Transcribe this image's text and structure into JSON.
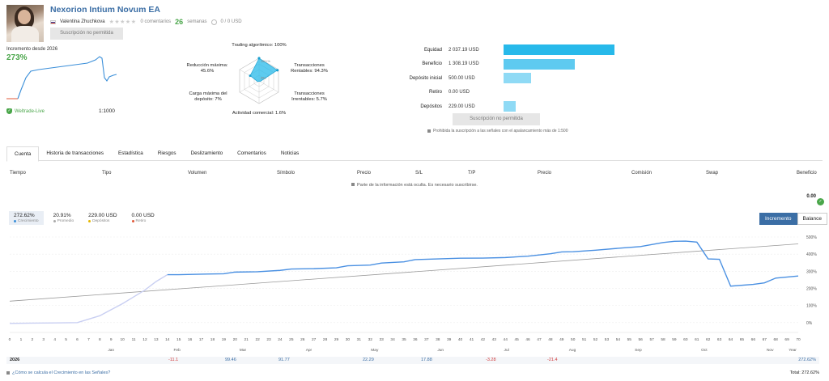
{
  "header": {
    "title": "Nexorion Intium Novum EA",
    "author": "Valentina Zhuchkova",
    "comments": "0 comentarios",
    "weeks_num": "26",
    "weeks_label": "semanas",
    "subscribers": "0 / 0 USD",
    "subscribe_btn": "Suscripción no permitida"
  },
  "summary": {
    "growth_label": "Incremento desde 2026",
    "growth_value": "273%",
    "broker": "Weltrade-Live",
    "leverage": "1:1000"
  },
  "radar": {
    "trading_algo": "Trading algorítmico: 100%",
    "center_label": "0%",
    "top_scale": "100+%",
    "rentables_1": "Transacciones",
    "rentables_2": "Rentables: 94.3%",
    "irrentables_1": "Transacciones",
    "irrentables_2": "Irrentables: 5.7%",
    "actividad": "Actividad comercial: 1.6%",
    "carga_1": "Carga máxima del",
    "carga_2": "depósito: 7%",
    "reduccion_1": "Reducción máxima:",
    "reduccion_2": "45.6%"
  },
  "balances": [
    {
      "label": "Equidad",
      "value": "2 037.19 USD",
      "fraction": 1.0,
      "color": "#27b9ea"
    },
    {
      "label": "Beneficio",
      "value": "1 308.19 USD",
      "fraction": 0.642,
      "color": "#5ecaf0"
    },
    {
      "label": "Depósito inicial",
      "value": "500.00 USD",
      "fraction": 0.245,
      "color": "#8fdaf5"
    },
    {
      "label": "Retiro",
      "value": "0.00 USD",
      "fraction": 0.0,
      "color": "#8fdaf5"
    },
    {
      "label": "Depósitos",
      "value": "229.00 USD",
      "fraction": 0.112,
      "color": "#8fdaf5"
    }
  ],
  "balances_btn": "Suscripción no permitida",
  "balances_note": "Prohibida la suscripción a las señales con el apalancamiento más de 1:500",
  "tabs": [
    "Cuenta",
    "Historia de transacciones",
    "Estadística",
    "Riesgos",
    "Deslizamiento",
    "Comentarios",
    "Noticias"
  ],
  "table_headers": [
    "Tiempo",
    "Tipo",
    "Volumen",
    "Símbolo",
    "Precio",
    "S/L",
    "T/P",
    "Precio",
    "Comisión",
    "Swap",
    "Beneficio"
  ],
  "hidden_note": "Parte de la información está oculta. Es necesario suscribirse.",
  "zero_total": "0.00",
  "stats": [
    {
      "value": "272.62%",
      "label": "Crecimiento",
      "color": "#3b8fd9"
    },
    {
      "value": "20.91%",
      "label": "Promedio",
      "color": "#aaaaaa"
    },
    {
      "value": "229.00 USD",
      "label": "Depósitos",
      "color": "#e6b800"
    },
    {
      "value": "0.00 USD",
      "label": "Retiro",
      "color": "#e05a3a"
    }
  ],
  "toggle": {
    "incremento": "Incremento",
    "balance": "Balance"
  },
  "chart_data": {
    "type": "line",
    "y_ticks": [
      "500%",
      "400%",
      "300%",
      "200%",
      "100%",
      "0%"
    ],
    "ylim": [
      -20,
      500
    ],
    "x_ticks": [
      "0",
      "1",
      "2",
      "3",
      "4",
      "5",
      "6",
      "7",
      "8",
      "9",
      "10",
      "11",
      "12",
      "13",
      "14",
      "15",
      "16",
      "17",
      "18",
      "19",
      "20",
      "21",
      "22",
      "23",
      "24",
      "25",
      "26",
      "27",
      "28",
      "29",
      "30",
      "31",
      "32",
      "33",
      "34",
      "35",
      "36",
      "37",
      "38",
      "39",
      "40",
      "41",
      "42",
      "43",
      "44",
      "45",
      "46",
      "47",
      "48",
      "49",
      "50",
      "51",
      "52",
      "53",
      "54",
      "55",
      "56",
      "57",
      "58",
      "59",
      "60",
      "61",
      "62",
      "63",
      "64",
      "65",
      "66",
      "67",
      "68",
      "69",
      "70"
    ],
    "months": [
      "Jan",
      "Feb",
      "Mar",
      "Apr",
      "May",
      "Jun",
      "Jul",
      "Aug",
      "Sep",
      "Oct",
      "Nov",
      "Dec",
      "Year"
    ],
    "growth_series": [
      [
        0,
        -5
      ],
      [
        2,
        -3
      ],
      [
        4,
        -2
      ],
      [
        6,
        0
      ],
      [
        7,
        20
      ],
      [
        8,
        40
      ],
      [
        9,
        75
      ],
      [
        10,
        110
      ],
      [
        11,
        150
      ],
      [
        12,
        190
      ],
      [
        13,
        240
      ],
      [
        14,
        280
      ],
      [
        15,
        280
      ],
      [
        17,
        283
      ],
      [
        19,
        285
      ],
      [
        20,
        295
      ],
      [
        22,
        297
      ],
      [
        24,
        305
      ],
      [
        25,
        313
      ],
      [
        27,
        315
      ],
      [
        29,
        320
      ],
      [
        30,
        332
      ],
      [
        32,
        336
      ],
      [
        33,
        348
      ],
      [
        35,
        355
      ],
      [
        36,
        368
      ],
      [
        38,
        372
      ],
      [
        40,
        376
      ],
      [
        42,
        377
      ],
      [
        44,
        380
      ],
      [
        46,
        388
      ],
      [
        48,
        402
      ],
      [
        49,
        413
      ],
      [
        50,
        414
      ],
      [
        52,
        423
      ],
      [
        54,
        434
      ],
      [
        56,
        444
      ],
      [
        58,
        468
      ],
      [
        59,
        475
      ],
      [
        60,
        476
      ],
      [
        61,
        470
      ],
      [
        62,
        372
      ],
      [
        63,
        370
      ],
      [
        64,
        213
      ],
      [
        66,
        223
      ],
      [
        67,
        232
      ],
      [
        68,
        260
      ],
      [
        70,
        272
      ]
    ],
    "trend_line": [
      [
        0,
        125
      ],
      [
        70,
        460
      ]
    ]
  },
  "year_row": {
    "year": "2026",
    "values": [
      "-11.1",
      "99.46",
      "91.77",
      "22.29",
      "17.88",
      "-3.28",
      "-21.4"
    ],
    "total": "272.62%"
  },
  "footer": {
    "question": "¿Cómo se calcula el Crecimiento en las Señales?",
    "total": "Total: 272.62%"
  }
}
